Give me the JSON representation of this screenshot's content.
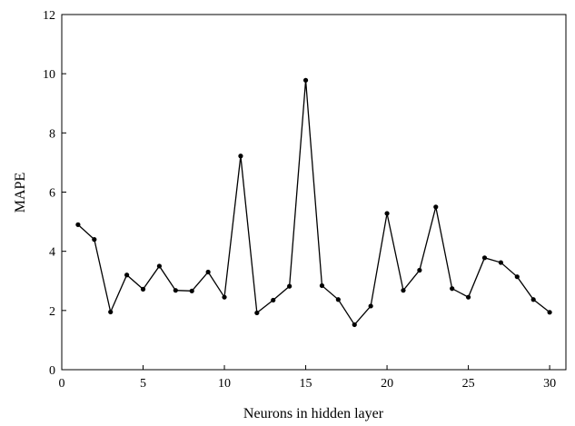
{
  "chart_data": {
    "type": "line",
    "title": "",
    "xlabel": "Neurons in hidden layer",
    "ylabel": "MAPE",
    "xlim": [
      0,
      31
    ],
    "ylim": [
      0,
      12
    ],
    "xticks": [
      0,
      5,
      10,
      15,
      20,
      25,
      30
    ],
    "yticks": [
      0,
      2,
      4,
      6,
      8,
      10,
      12
    ],
    "grid": false,
    "legend": "none",
    "series": [
      {
        "x": [
          1,
          2,
          3,
          4,
          5,
          6,
          7,
          8,
          9,
          10,
          11,
          12,
          13,
          14,
          15,
          16,
          17,
          18,
          19,
          20,
          21,
          22,
          23,
          24,
          25,
          26,
          27,
          28,
          29,
          30
        ],
        "values": [
          4.9,
          4.4,
          1.95,
          3.2,
          2.72,
          3.5,
          2.68,
          2.66,
          3.3,
          2.45,
          7.22,
          1.92,
          2.35,
          2.82,
          9.78,
          2.84,
          2.37,
          1.52,
          2.15,
          5.28,
          2.68,
          3.36,
          5.5,
          2.74,
          2.45,
          3.78,
          3.62,
          3.14,
          2.37,
          1.94
        ]
      }
    ],
    "colors": {
      "line": "#000000",
      "marker": "#000000",
      "axis": "#000000"
    }
  }
}
